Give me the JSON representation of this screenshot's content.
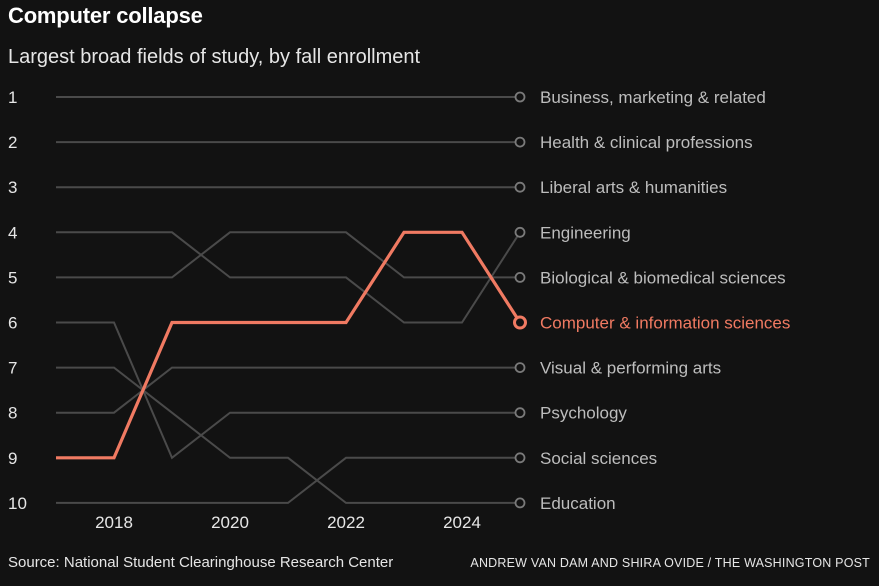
{
  "header": {
    "title": "Computer collapse",
    "subtitle": "Largest broad fields of study, by fall enrollment"
  },
  "footer": {
    "source": "Source: National Student Clearinghouse Research Center",
    "credit": "ANDREW VAN DAM AND SHIRA OVIDE / THE WASHINGTON POST"
  },
  "colors": {
    "background": "#121212",
    "highlight": "#f07a62",
    "line": "#4a4a4a",
    "marker": "#7a7a7a",
    "label": "#bdbdbd"
  },
  "chart_data": {
    "type": "line",
    "subtype": "bump",
    "title": "Largest broad fields of study, by fall enrollment",
    "x": [
      2017,
      2018,
      2019,
      2020,
      2021,
      2022,
      2023,
      2024,
      2025
    ],
    "x_ticks": [
      2018,
      2020,
      2022,
      2024
    ],
    "y_ticks": [
      1,
      2,
      3,
      4,
      5,
      6,
      7,
      8,
      9,
      10
    ],
    "ylim": [
      1,
      10
    ],
    "y_inverted": true,
    "grid": false,
    "legend": "end-labels",
    "highlight_series": "Computer & information sciences",
    "series": [
      {
        "name": "Business, marketing & related",
        "values": [
          1,
          1,
          1,
          1,
          1,
          1,
          1,
          1,
          1
        ]
      },
      {
        "name": "Health & clinical professions",
        "values": [
          2,
          2,
          2,
          2,
          2,
          2,
          2,
          2,
          2
        ]
      },
      {
        "name": "Liberal arts & humanities",
        "values": [
          3,
          3,
          3,
          3,
          3,
          3,
          3,
          3,
          3
        ]
      },
      {
        "name": "Engineering",
        "values": [
          4,
          4,
          4,
          5,
          5,
          5,
          6,
          6,
          4
        ]
      },
      {
        "name": "Biological & biomedical sciences",
        "values": [
          5,
          5,
          5,
          4,
          4,
          4,
          5,
          5,
          5
        ]
      },
      {
        "name": "Computer & information sciences",
        "values": [
          9,
          9,
          6,
          6,
          6,
          6,
          4,
          4,
          6
        ]
      },
      {
        "name": "Psychology",
        "values": [
          6,
          6,
          9,
          8,
          8,
          8,
          8,
          8,
          8
        ]
      },
      {
        "name": "Education",
        "values": [
          7,
          7,
          8,
          9,
          9,
          10,
          10,
          10,
          10
        ]
      },
      {
        "name": "Visual & performing arts",
        "values": [
          8,
          8,
          7,
          7,
          7,
          7,
          7,
          7,
          7
        ]
      },
      {
        "name": "Social sciences",
        "values": [
          10,
          10,
          10,
          10,
          10,
          9,
          9,
          9,
          9
        ]
      }
    ]
  }
}
